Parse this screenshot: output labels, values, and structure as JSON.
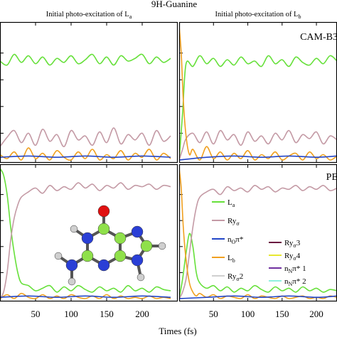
{
  "figure": {
    "title": "9H-Guanine",
    "xlabel": "Times (fs)"
  },
  "colors": {
    "La": "#66e03a",
    "Ry_sigma": "#c49aa5",
    "nO_pi": "#2246c8",
    "Lb": "#f0a020",
    "Ry_sigma2": "#cfcfcf",
    "Ry_sigma3": "#6a1240",
    "Ry_sigma4": "#e8e830",
    "nN_pi1": "#7030a0",
    "nN_pi2": "#8ff0e0",
    "atom_C": "#8fe04a",
    "atom_N": "#2a3fd6",
    "atom_O": "#e01010",
    "atom_H": "#cfcfcf"
  },
  "chart_data": [
    {
      "panel": "top-left",
      "type": "line",
      "column_title": "Initial photo-excitation of L",
      "column_title_sub": "a",
      "method_label": "",
      "x_ticks": [
        50,
        100,
        150,
        200
      ],
      "xlim": [
        0,
        250
      ],
      "ylim": [
        0,
        1
      ],
      "series": [
        {
          "key": "La",
          "x": [
            0,
            10,
            20,
            30,
            40,
            50,
            60,
            70,
            80,
            90,
            100,
            110,
            120,
            130,
            140,
            150,
            160,
            170,
            180,
            190,
            200,
            210,
            220,
            230,
            240
          ],
          "y": [
            0.74,
            0.71,
            0.79,
            0.73,
            0.78,
            0.72,
            0.77,
            0.71,
            0.76,
            0.73,
            0.78,
            0.72,
            0.75,
            0.79,
            0.72,
            0.77,
            0.71,
            0.78,
            0.74,
            0.76,
            0.79,
            0.72,
            0.77,
            0.73,
            0.76
          ]
        },
        {
          "key": "Ry_sigma",
          "x": [
            0,
            10,
            20,
            30,
            40,
            50,
            60,
            70,
            80,
            90,
            100,
            110,
            120,
            130,
            140,
            150,
            160,
            170,
            180,
            190,
            200,
            210,
            220,
            230,
            240
          ],
          "y": [
            0.1,
            0.17,
            0.22,
            0.13,
            0.2,
            0.11,
            0.23,
            0.14,
            0.19,
            0.1,
            0.22,
            0.15,
            0.18,
            0.11,
            0.21,
            0.13,
            0.24,
            0.12,
            0.19,
            0.15,
            0.2,
            0.11,
            0.22,
            0.14,
            0.18
          ]
        },
        {
          "key": "Lb",
          "x": [
            0,
            10,
            20,
            30,
            40,
            50,
            60,
            70,
            80,
            90,
            100,
            110,
            120,
            130,
            140,
            150,
            160,
            170,
            180,
            190,
            200,
            210,
            220,
            230,
            240
          ],
          "y": [
            0.04,
            0.01,
            0.06,
            0.0,
            0.09,
            0.01,
            0.05,
            0.0,
            0.07,
            0.02,
            0.0,
            0.06,
            0.01,
            0.08,
            0.0,
            0.04,
            0.01,
            0.07,
            0.0,
            0.05,
            0.02,
            0.08,
            0.0,
            0.05,
            0.01
          ]
        },
        {
          "key": "nO_pi",
          "x": [
            0,
            40,
            80,
            120,
            160,
            200,
            240
          ],
          "y": [
            0.02,
            0.03,
            0.02,
            0.03,
            0.02,
            0.03,
            0.02
          ]
        }
      ]
    },
    {
      "panel": "top-right",
      "type": "line",
      "column_title": "Initial photo-excitation of L",
      "column_title_sub": "b",
      "method_label": "CAM-B3",
      "x_ticks": [
        50,
        100,
        150,
        200
      ],
      "xlim": [
        0,
        230
      ],
      "ylim": [
        0,
        1
      ],
      "series": [
        {
          "key": "La",
          "x": [
            0,
            5,
            10,
            20,
            30,
            40,
            50,
            60,
            70,
            80,
            90,
            100,
            110,
            120,
            130,
            140,
            150,
            160,
            170,
            180,
            190,
            200,
            210,
            220,
            230
          ],
          "y": [
            0.0,
            0.35,
            0.72,
            0.7,
            0.78,
            0.72,
            0.76,
            0.7,
            0.75,
            0.71,
            0.77,
            0.72,
            0.74,
            0.7,
            0.78,
            0.72,
            0.75,
            0.7,
            0.77,
            0.73,
            0.71,
            0.76,
            0.72,
            0.78,
            0.74
          ]
        },
        {
          "key": "Ry_sigma",
          "x": [
            0,
            5,
            10,
            20,
            30,
            40,
            50,
            60,
            70,
            80,
            90,
            100,
            110,
            120,
            130,
            140,
            150,
            160,
            170,
            180,
            190,
            200,
            210,
            220,
            230
          ],
          "y": [
            0.0,
            0.08,
            0.16,
            0.2,
            0.13,
            0.21,
            0.12,
            0.22,
            0.15,
            0.19,
            0.11,
            0.21,
            0.14,
            0.18,
            0.12,
            0.2,
            0.15,
            0.22,
            0.13,
            0.19,
            0.16,
            0.21,
            0.12,
            0.18,
            0.15
          ]
        },
        {
          "key": "Lb",
          "x": [
            0,
            3,
            6,
            10,
            15,
            20,
            30,
            40,
            50,
            60,
            70,
            80,
            90,
            100,
            110,
            120,
            130,
            140,
            150,
            160,
            170,
            180,
            190,
            200,
            210,
            220,
            230
          ],
          "y": [
            1.0,
            0.8,
            0.45,
            0.18,
            0.04,
            0.08,
            0.0,
            0.1,
            0.01,
            0.06,
            0.0,
            0.05,
            0.01,
            0.07,
            0.0,
            0.04,
            0.01,
            0.06,
            0.0,
            0.03,
            0.05,
            0.0,
            0.06,
            0.01,
            0.04,
            0.0,
            0.03
          ]
        },
        {
          "key": "nO_pi",
          "x": [
            0,
            40,
            80,
            120,
            160,
            200,
            230
          ],
          "y": [
            0.0,
            0.02,
            0.03,
            0.02,
            0.03,
            0.02,
            0.03
          ]
        }
      ]
    },
    {
      "panel": "bottom-left",
      "type": "line",
      "method_label": "",
      "x_ticks": [
        50,
        100,
        150,
        200
      ],
      "xlim": [
        0,
        250
      ],
      "ylim": [
        0,
        1
      ],
      "series": [
        {
          "key": "La",
          "x": [
            0,
            5,
            10,
            15,
            20,
            25,
            30,
            40,
            50,
            60,
            70,
            80,
            90,
            100,
            110,
            120,
            130,
            140,
            150,
            160,
            170,
            180,
            190,
            200,
            210,
            220,
            230,
            240
          ],
          "y": [
            1.0,
            0.95,
            0.8,
            0.55,
            0.35,
            0.2,
            0.12,
            0.1,
            0.06,
            0.08,
            0.1,
            0.05,
            0.09,
            0.06,
            0.1,
            0.07,
            0.05,
            0.09,
            0.06,
            0.08,
            0.05,
            0.1,
            0.06,
            0.08,
            0.05,
            0.09,
            0.07,
            0.06
          ]
        },
        {
          "key": "Ry_sigma",
          "x": [
            0,
            5,
            10,
            15,
            20,
            25,
            30,
            40,
            50,
            60,
            70,
            80,
            90,
            100,
            110,
            120,
            130,
            140,
            150,
            160,
            170,
            180,
            190,
            200,
            210,
            220,
            230,
            240
          ],
          "y": [
            0.0,
            0.05,
            0.2,
            0.45,
            0.62,
            0.72,
            0.78,
            0.82,
            0.85,
            0.81,
            0.87,
            0.83,
            0.86,
            0.84,
            0.89,
            0.85,
            0.88,
            0.83,
            0.87,
            0.85,
            0.89,
            0.84,
            0.87,
            0.86,
            0.88,
            0.84,
            0.87,
            0.86
          ]
        },
        {
          "key": "Lb",
          "x": [
            0,
            10,
            20,
            30,
            40,
            50,
            60,
            70,
            80,
            90,
            100,
            110,
            120,
            130,
            140,
            150,
            160,
            170,
            180,
            190,
            200,
            210,
            220,
            230,
            240
          ],
          "y": [
            0.0,
            0.03,
            0.0,
            0.04,
            0.01,
            0.0,
            0.03,
            0.0,
            0.02,
            0.0,
            0.03,
            0.01,
            0.0,
            0.02,
            0.0,
            0.03,
            0.0,
            0.02,
            0.0,
            0.01,
            0.0,
            0.02,
            0.0,
            0.01,
            0.0
          ]
        },
        {
          "key": "nO_pi",
          "x": [
            0,
            40,
            80,
            120,
            160,
            200,
            240
          ],
          "y": [
            0.01,
            0.02,
            0.01,
            0.02,
            0.01,
            0.02,
            0.01
          ]
        }
      ]
    },
    {
      "panel": "bottom-right",
      "type": "line",
      "method_label": "PE",
      "x_ticks": [
        50,
        100,
        150,
        200
      ],
      "xlim": [
        0,
        230
      ],
      "ylim": [
        0,
        1
      ],
      "series": [
        {
          "key": "La",
          "x": [
            0,
            5,
            10,
            15,
            20,
            25,
            30,
            40,
            50,
            60,
            70,
            80,
            90,
            100,
            110,
            120,
            130,
            140,
            150,
            160,
            170,
            180,
            190,
            200,
            210,
            220,
            230
          ],
          "y": [
            0.0,
            0.15,
            0.35,
            0.5,
            0.4,
            0.2,
            0.12,
            0.08,
            0.1,
            0.06,
            0.09,
            0.05,
            0.08,
            0.06,
            0.1,
            0.07,
            0.05,
            0.09,
            0.06,
            0.08,
            0.05,
            0.09,
            0.06,
            0.08,
            0.05,
            0.07,
            0.06
          ]
        },
        {
          "key": "Ry_sigma",
          "x": [
            0,
            5,
            10,
            15,
            20,
            25,
            30,
            40,
            50,
            60,
            70,
            80,
            90,
            100,
            110,
            120,
            130,
            140,
            150,
            160,
            170,
            180,
            190,
            200,
            210,
            220,
            230
          ],
          "y": [
            0.0,
            0.05,
            0.15,
            0.35,
            0.55,
            0.7,
            0.78,
            0.82,
            0.84,
            0.8,
            0.86,
            0.83,
            0.85,
            0.82,
            0.87,
            0.84,
            0.86,
            0.82,
            0.85,
            0.84,
            0.87,
            0.83,
            0.86,
            0.84,
            0.87,
            0.83,
            0.85
          ]
        },
        {
          "key": "Lb",
          "x": [
            0,
            3,
            6,
            10,
            15,
            20,
            25,
            30,
            40,
            50,
            60,
            70,
            80,
            90,
            100,
            110,
            120,
            130,
            140,
            150,
            160,
            170,
            180,
            190,
            200,
            210,
            220,
            230
          ],
          "y": [
            1.0,
            0.85,
            0.55,
            0.3,
            0.12,
            0.05,
            0.02,
            0.04,
            0.01,
            0.03,
            0.0,
            0.02,
            0.01,
            0.0,
            0.03,
            0.0,
            0.02,
            0.01,
            0.0,
            0.02,
            0.0,
            0.01,
            0.02,
            0.0,
            0.01,
            0.0,
            0.02,
            0.01
          ]
        },
        {
          "key": "nO_pi",
          "x": [
            0,
            40,
            80,
            120,
            160,
            200,
            230
          ],
          "y": [
            0.0,
            0.01,
            0.02,
            0.01,
            0.02,
            0.01,
            0.02
          ]
        }
      ]
    }
  ],
  "legend": {
    "placement": "bottom-right panel, lower area",
    "entries": [
      {
        "key": "La",
        "label": "L",
        "sub": "a",
        "sup": ""
      },
      {
        "key": "Ry_sigma",
        "label": "Ry",
        "sub": "σ",
        "sup": ""
      },
      {
        "key": "nO_pi",
        "label": "n",
        "sub": "O",
        "sup": "",
        "tail": "π*"
      },
      {
        "key": "Lb",
        "label": "L",
        "sub": "b",
        "sup": ""
      },
      {
        "key": "Ry_sigma2",
        "label": "Ry",
        "sub": "σ",
        "sup": "",
        "tail": "2"
      },
      {
        "key": "Ry_sigma3",
        "label": "Ry",
        "sub": "σ",
        "sup": "",
        "tail": "3"
      },
      {
        "key": "Ry_sigma4",
        "label": "Ry",
        "sub": "σ",
        "sup": "",
        "tail": "4"
      },
      {
        "key": "nN_pi1",
        "label": "n",
        "sub": "N",
        "sup": "",
        "tail": "π* 1"
      },
      {
        "key": "nN_pi2",
        "label": "n",
        "sub": "N",
        "sup": "",
        "tail": "π* 2"
      }
    ]
  }
}
